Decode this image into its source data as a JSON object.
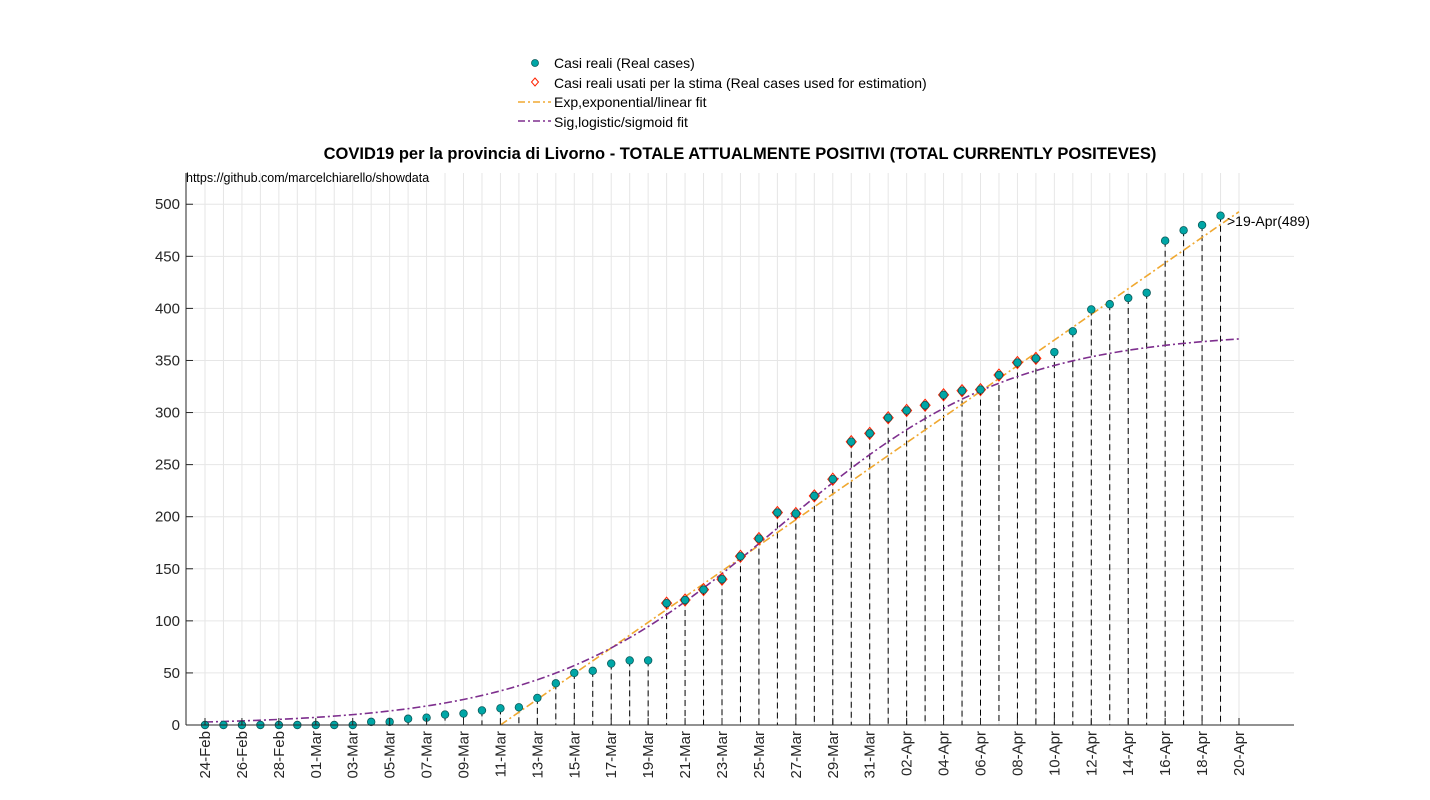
{
  "chart_data": {
    "type": "scatter",
    "title": "COVID19 per la provincia di Livorno - TOTALE ATTUALMENTE POSITIVI (TOTAL CURRENTLY POSITEVES)",
    "source_note": "https://github.com/marcelchiarello/showdata",
    "annotation": ">19-Apr(489)",
    "x_tick_labels": [
      "24-Feb",
      "26-Feb",
      "28-Feb",
      "01-Mar",
      "03-Mar",
      "05-Mar",
      "07-Mar",
      "09-Mar",
      "11-Mar",
      "13-Mar",
      "15-Mar",
      "17-Mar",
      "19-Mar",
      "21-Mar",
      "23-Mar",
      "25-Mar",
      "27-Mar",
      "29-Mar",
      "31-Mar",
      "02-Apr",
      "04-Apr",
      "06-Apr",
      "08-Apr",
      "10-Apr",
      "12-Apr",
      "14-Apr",
      "16-Apr",
      "18-Apr",
      "20-Apr"
    ],
    "y_ticks": [
      0,
      50,
      100,
      150,
      200,
      250,
      300,
      350,
      400,
      450,
      500
    ],
    "xlim": [
      "24-Feb",
      "20-Apr"
    ],
    "ylim": [
      0,
      530
    ],
    "grid": true,
    "legend_position": "top-center (above title)",
    "dates": [
      "24-Feb",
      "25-Feb",
      "26-Feb",
      "27-Feb",
      "28-Feb",
      "29-Feb",
      "01-Mar",
      "02-Mar",
      "03-Mar",
      "04-Mar",
      "05-Mar",
      "06-Mar",
      "07-Mar",
      "08-Mar",
      "09-Mar",
      "10-Mar",
      "11-Mar",
      "12-Mar",
      "13-Mar",
      "14-Mar",
      "15-Mar",
      "16-Mar",
      "17-Mar",
      "18-Mar",
      "19-Mar",
      "20-Mar",
      "21-Mar",
      "22-Mar",
      "23-Mar",
      "24-Mar",
      "25-Mar",
      "26-Mar",
      "27-Mar",
      "28-Mar",
      "29-Mar",
      "30-Mar",
      "31-Mar",
      "01-Apr",
      "02-Apr",
      "03-Apr",
      "04-Apr",
      "05-Apr",
      "06-Apr",
      "07-Apr",
      "08-Apr",
      "09-Apr",
      "10-Apr",
      "11-Apr",
      "12-Apr",
      "13-Apr",
      "14-Apr",
      "15-Apr",
      "16-Apr",
      "17-Apr",
      "18-Apr",
      "19-Apr"
    ],
    "series": [
      {
        "name": "Casi reali (Real cases)",
        "color": "#00a6a6",
        "marker": "filled-circle",
        "values": [
          0,
          0,
          0,
          0,
          0,
          0,
          0,
          0,
          0,
          3,
          3,
          6,
          7,
          10,
          11,
          14,
          16,
          17,
          26,
          40,
          50,
          52,
          59,
          62,
          62,
          117,
          120,
          130,
          140,
          162,
          179,
          204,
          203,
          220,
          236,
          272,
          280,
          295,
          302,
          307,
          317,
          321,
          322,
          336,
          348,
          352,
          358,
          378,
          399,
          404,
          410,
          415,
          465,
          475,
          480,
          489
        ]
      },
      {
        "name": "Casi reali usati per la stima (Real cases used for estimation)",
        "color": "#ff2200",
        "marker": "open-diamond",
        "start_date": "20-Mar",
        "end_date": "09-Apr"
      },
      {
        "name": "Exp,exponential/linear fit",
        "color": "#f0a830",
        "line_style": "dash-dot",
        "slope_per_day": 12.32,
        "zero_crossing_date": "11-Mar",
        "end_value": 520
      },
      {
        "name": "Sig,logistic/sigmoid fit",
        "color": "#7e2f8e",
        "line_style": "dash-dot",
        "upper_asymptote": 378,
        "midpoint_date": "26-Mar",
        "growth_rate": 0.157
      }
    ]
  }
}
